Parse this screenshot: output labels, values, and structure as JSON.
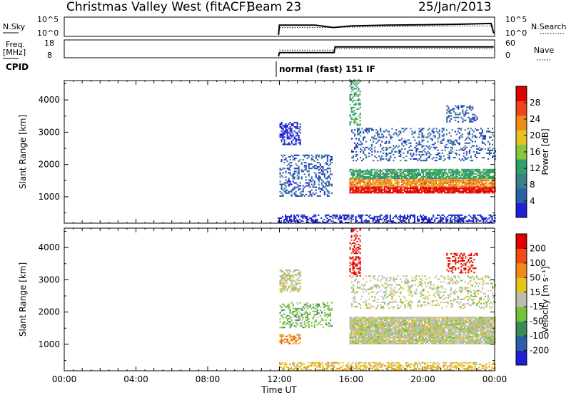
{
  "header": {
    "title": "Christmas Valley West (fitACF)",
    "beam": "Beam 23",
    "date": "25/Jan/2013"
  },
  "colors": {
    "power_scale": [
      "#1f1fd6",
      "#2d5fa8",
      "#3b7f8c",
      "#2ea06a",
      "#88c63e",
      "#e6c21f",
      "#f08a1a",
      "#f0441a",
      "#e00000"
    ],
    "velocity_scale": [
      "#1f1fd6",
      "#2d5fa8",
      "#3b8a5a",
      "#72c23a",
      "#bcbcae",
      "#e6c21f",
      "#f08a1a",
      "#f04a1a",
      "#e00000"
    ]
  },
  "chart_data": [
    {
      "type": "line",
      "panel": "nsky-nsearch",
      "left_label": "N.Sky",
      "right_label": "N.Search",
      "left_ticks": [
        "10^5",
        "10^0"
      ],
      "right_ticks": [
        "10^5",
        "10^0"
      ],
      "x_range_hours": [
        0,
        24
      ],
      "series": [
        {
          "name": "N.Sky",
          "x": [
            11.95,
            12.0,
            14.0,
            15.0,
            16.0,
            18.0,
            20.0,
            22.0,
            23.8,
            23.95
          ],
          "y": [
            0,
            0.6,
            0.6,
            0.45,
            0.55,
            0.6,
            0.62,
            0.65,
            0.7,
            0.1
          ]
        },
        {
          "name": "N.Search",
          "x": [
            12.0,
            14.0,
            16.0,
            18.0,
            20.0,
            22.0,
            23.9
          ],
          "y": [
            0.45,
            0.45,
            0.48,
            0.5,
            0.52,
            0.55,
            0.55
          ]
        }
      ]
    },
    {
      "type": "line",
      "panel": "freq-nave",
      "left_label": "Freq.",
      "left_unit": "[MHz]",
      "right_label": "Nave",
      "left_ticks": [
        "18",
        "8"
      ],
      "right_ticks": [
        "60",
        "0"
      ],
      "x_range_hours": [
        0,
        24
      ],
      "series": [
        {
          "name": "Freq.",
          "x": [
            11.95,
            12.0,
            15.05,
            15.1,
            23.95
          ],
          "y": [
            8,
            10.5,
            10.5,
            14.3,
            14.3
          ]
        },
        {
          "name": "Nave",
          "x": [
            12.0,
            15.0,
            15.1,
            23.9
          ],
          "y": [
            25,
            25,
            30,
            30
          ]
        }
      ]
    },
    {
      "type": "text",
      "panel": "cpid",
      "label": "CPID",
      "entries": [
        {
          "start_hour": 11.95,
          "text": "normal (fast) 151 IF"
        }
      ]
    },
    {
      "type": "heatmap",
      "panel": "power",
      "ylabel": "Slant Range [km]",
      "yticks": [
        1000,
        2000,
        3000,
        4000
      ],
      "ylim": [
        180,
        4600
      ],
      "x_range_hours": [
        0,
        24
      ],
      "colorbar_label": "Power [dB]",
      "colorbar_ticks": [
        "28",
        "24",
        "20",
        "16",
        "12",
        "8",
        "4"
      ],
      "bands": [
        {
          "t0": 11.9,
          "t1": 24.0,
          "r0": 180,
          "r1": 420,
          "level": 0,
          "density": 0.55
        },
        {
          "t0": 12.0,
          "t1": 13.2,
          "r0": 2600,
          "r1": 3300,
          "level": 0,
          "density": 0.6
        },
        {
          "t0": 12.0,
          "t1": 14.9,
          "r0": 1000,
          "r1": 2300,
          "level": 1,
          "density": 0.35
        },
        {
          "t0": 15.9,
          "t1": 24.0,
          "r0": 1100,
          "r1": 1300,
          "level": 8,
          "density": 0.9
        },
        {
          "t0": 15.9,
          "t1": 24.0,
          "r0": 1300,
          "r1": 1550,
          "level": 6,
          "density": 0.85
        },
        {
          "t0": 15.9,
          "t1": 24.0,
          "r0": 1550,
          "r1": 1850,
          "level": 3,
          "density": 0.8
        },
        {
          "t0": 16.0,
          "t1": 24.0,
          "r0": 2100,
          "r1": 3100,
          "level": 1,
          "density": 0.25
        },
        {
          "t0": 15.9,
          "t1": 16.5,
          "r0": 3200,
          "r1": 4600,
          "level": 3,
          "density": 0.4
        },
        {
          "t0": 21.3,
          "t1": 23.0,
          "r0": 3300,
          "r1": 3800,
          "level": 1,
          "density": 0.35
        }
      ]
    },
    {
      "type": "heatmap",
      "panel": "velocity",
      "ylabel": "Slant Range [km]",
      "xlabel": "Time UT",
      "yticks": [
        1000,
        2000,
        3000,
        4000
      ],
      "ylim": [
        180,
        4600
      ],
      "x_range_hours": [
        0,
        24
      ],
      "xticks": [
        "00:00",
        "04:00",
        "08:00",
        "12:00",
        "16:00",
        "20:00",
        "00:00"
      ],
      "colorbar_label": "Velocity [m s⁻¹]",
      "colorbar_ticks": [
        "200",
        "100",
        "50",
        "15",
        "-15",
        "-50",
        "-100",
        "-200"
      ],
      "bands": [
        {
          "t0": 11.9,
          "t1": 24.0,
          "r0": 180,
          "r1": 420,
          "level": 5,
          "density": 0.5
        },
        {
          "t0": 12.0,
          "t1": 13.2,
          "r0": 2600,
          "r1": 3300,
          "level": 4,
          "density": 0.55
        },
        {
          "t0": 12.0,
          "t1": 14.9,
          "r0": 1500,
          "r1": 2300,
          "level": 3,
          "density": 0.35
        },
        {
          "t0": 12.0,
          "t1": 13.2,
          "r0": 1000,
          "r1": 1300,
          "level": 6,
          "density": 0.5
        },
        {
          "t0": 15.9,
          "t1": 24.0,
          "r0": 1000,
          "r1": 1850,
          "level": 4,
          "density": 0.92
        },
        {
          "t0": 16.0,
          "t1": 24.0,
          "r0": 2100,
          "r1": 3100,
          "level": 4,
          "density": 0.25
        },
        {
          "t0": 15.9,
          "t1": 16.5,
          "r0": 3100,
          "r1": 3700,
          "level": 8,
          "density": 0.55
        },
        {
          "t0": 15.9,
          "t1": 16.5,
          "r0": 3800,
          "r1": 4600,
          "level": 8,
          "density": 0.3
        },
        {
          "t0": 21.3,
          "t1": 23.0,
          "r0": 3200,
          "r1": 3800,
          "level": 8,
          "density": 0.3
        }
      ]
    }
  ]
}
